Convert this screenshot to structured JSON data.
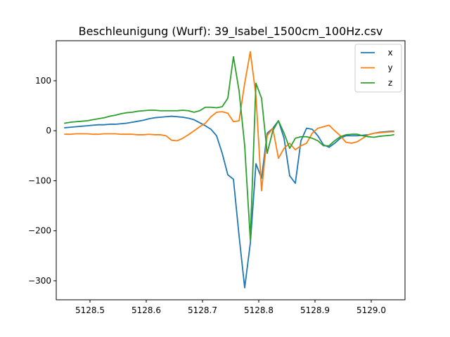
{
  "chart_data": {
    "type": "line",
    "title": "Beschleunigung (Wurf): 39_Isabel_1500cm_100Hz.csv",
    "xlabel": "",
    "ylabel": "",
    "xlim": [
      5128.44,
      5129.06
    ],
    "ylim": [
      -338,
      180
    ],
    "xticks": [
      5128.5,
      5128.6,
      5128.7,
      5128.8,
      5128.9,
      5129.0
    ],
    "xtick_labels": [
      "5128.5",
      "5128.6",
      "5128.7",
      "5128.8",
      "5128.9",
      "5129.0"
    ],
    "yticks": [
      -300,
      -200,
      -100,
      0,
      100
    ],
    "ytick_labels": [
      "−300",
      "−200",
      "−100",
      "0",
      "100"
    ],
    "grid": false,
    "legend_position": "top-right",
    "series": [
      {
        "name": "x",
        "color": "#1f77b4",
        "x": [
          5128.455,
          5128.465,
          5128.475,
          5128.485,
          5128.495,
          5128.505,
          5128.515,
          5128.525,
          5128.535,
          5128.545,
          5128.555,
          5128.565,
          5128.575,
          5128.585,
          5128.595,
          5128.605,
          5128.615,
          5128.625,
          5128.635,
          5128.645,
          5128.655,
          5128.665,
          5128.675,
          5128.685,
          5128.695,
          5128.705,
          5128.715,
          5128.725,
          5128.735,
          5128.745,
          5128.755,
          5128.765,
          5128.775,
          5128.785,
          5128.795,
          5128.805,
          5128.815,
          5128.825,
          5128.835,
          5128.845,
          5128.855,
          5128.865,
          5128.875,
          5128.885,
          5128.895,
          5128.905,
          5128.915,
          5128.925,
          5128.935,
          5128.945,
          5128.955,
          5128.965,
          5128.975,
          5128.985,
          5128.995,
          5129.005,
          5129.015,
          5129.025,
          5129.035,
          5129.04
        ],
        "y": [
          6,
          7,
          8,
          9,
          10,
          11,
          12,
          12,
          13,
          13,
          14,
          15,
          17,
          19,
          21,
          24,
          26,
          27,
          28,
          29,
          28,
          27,
          25,
          22,
          16,
          10,
          3,
          -10,
          -45,
          -88,
          -97,
          -210,
          -314,
          -225,
          -66,
          -95,
          -5,
          5,
          20,
          -15,
          -90,
          -105,
          -20,
          5,
          3,
          -10,
          -28,
          -33,
          -25,
          -15,
          -10,
          -10,
          -10,
          -9,
          -8,
          -5,
          -3,
          -2,
          -1,
          -1
        ]
      },
      {
        "name": "y",
        "color": "#ff7f0e",
        "x": [
          5128.455,
          5128.465,
          5128.475,
          5128.485,
          5128.495,
          5128.505,
          5128.515,
          5128.525,
          5128.535,
          5128.545,
          5128.555,
          5128.565,
          5128.575,
          5128.585,
          5128.595,
          5128.605,
          5128.615,
          5128.625,
          5128.635,
          5128.645,
          5128.655,
          5128.665,
          5128.675,
          5128.685,
          5128.695,
          5128.705,
          5128.715,
          5128.725,
          5128.735,
          5128.745,
          5128.755,
          5128.765,
          5128.775,
          5128.785,
          5128.795,
          5128.805,
          5128.815,
          5128.825,
          5128.835,
          5128.845,
          5128.855,
          5128.865,
          5128.875,
          5128.885,
          5128.895,
          5128.905,
          5128.915,
          5128.925,
          5128.935,
          5128.945,
          5128.955,
          5128.965,
          5128.975,
          5128.985,
          5128.995,
          5129.005,
          5129.015,
          5129.025,
          5129.035,
          5129.04
        ],
        "y": [
          -7,
          -7,
          -6,
          -6,
          -6,
          -7,
          -7,
          -6,
          -6,
          -6,
          -7,
          -7,
          -7,
          -8,
          -8,
          -7,
          -8,
          -8,
          -10,
          -19,
          -20,
          -15,
          -8,
          0,
          8,
          15,
          28,
          37,
          38,
          35,
          18,
          20,
          95,
          158,
          70,
          -120,
          -10,
          5,
          -55,
          -35,
          -25,
          -38,
          -30,
          -25,
          -5,
          5,
          8,
          11,
          0,
          -10,
          -23,
          -25,
          -22,
          -15,
          -8,
          -5,
          -4,
          -3,
          -2,
          -2
        ]
      },
      {
        "name": "z",
        "color": "#2ca02c",
        "x": [
          5128.455,
          5128.465,
          5128.475,
          5128.485,
          5128.495,
          5128.505,
          5128.515,
          5128.525,
          5128.535,
          5128.545,
          5128.555,
          5128.565,
          5128.575,
          5128.585,
          5128.595,
          5128.605,
          5128.615,
          5128.625,
          5128.635,
          5128.645,
          5128.655,
          5128.665,
          5128.675,
          5128.685,
          5128.695,
          5128.705,
          5128.715,
          5128.725,
          5128.735,
          5128.745,
          5128.755,
          5128.765,
          5128.775,
          5128.785,
          5128.795,
          5128.805,
          5128.815,
          5128.825,
          5128.835,
          5128.845,
          5128.855,
          5128.865,
          5128.875,
          5128.885,
          5128.895,
          5128.905,
          5128.915,
          5128.925,
          5128.935,
          5128.945,
          5128.955,
          5128.965,
          5128.975,
          5128.985,
          5128.995,
          5129.005,
          5129.015,
          5129.025,
          5129.035,
          5129.04
        ],
        "y": [
          15,
          17,
          18,
          19,
          20,
          22,
          24,
          26,
          29,
          31,
          34,
          36,
          37,
          39,
          40,
          41,
          41,
          40,
          40,
          40,
          40,
          41,
          40,
          37,
          40,
          47,
          47,
          46,
          48,
          65,
          148,
          80,
          -30,
          -218,
          95,
          65,
          -45,
          0,
          20,
          -5,
          -35,
          -15,
          -12,
          -12,
          -15,
          -20,
          -30,
          -30,
          -20,
          -12,
          -8,
          -7,
          -7,
          -10,
          -12,
          -13,
          -11,
          -10,
          -9,
          -8
        ]
      }
    ]
  }
}
